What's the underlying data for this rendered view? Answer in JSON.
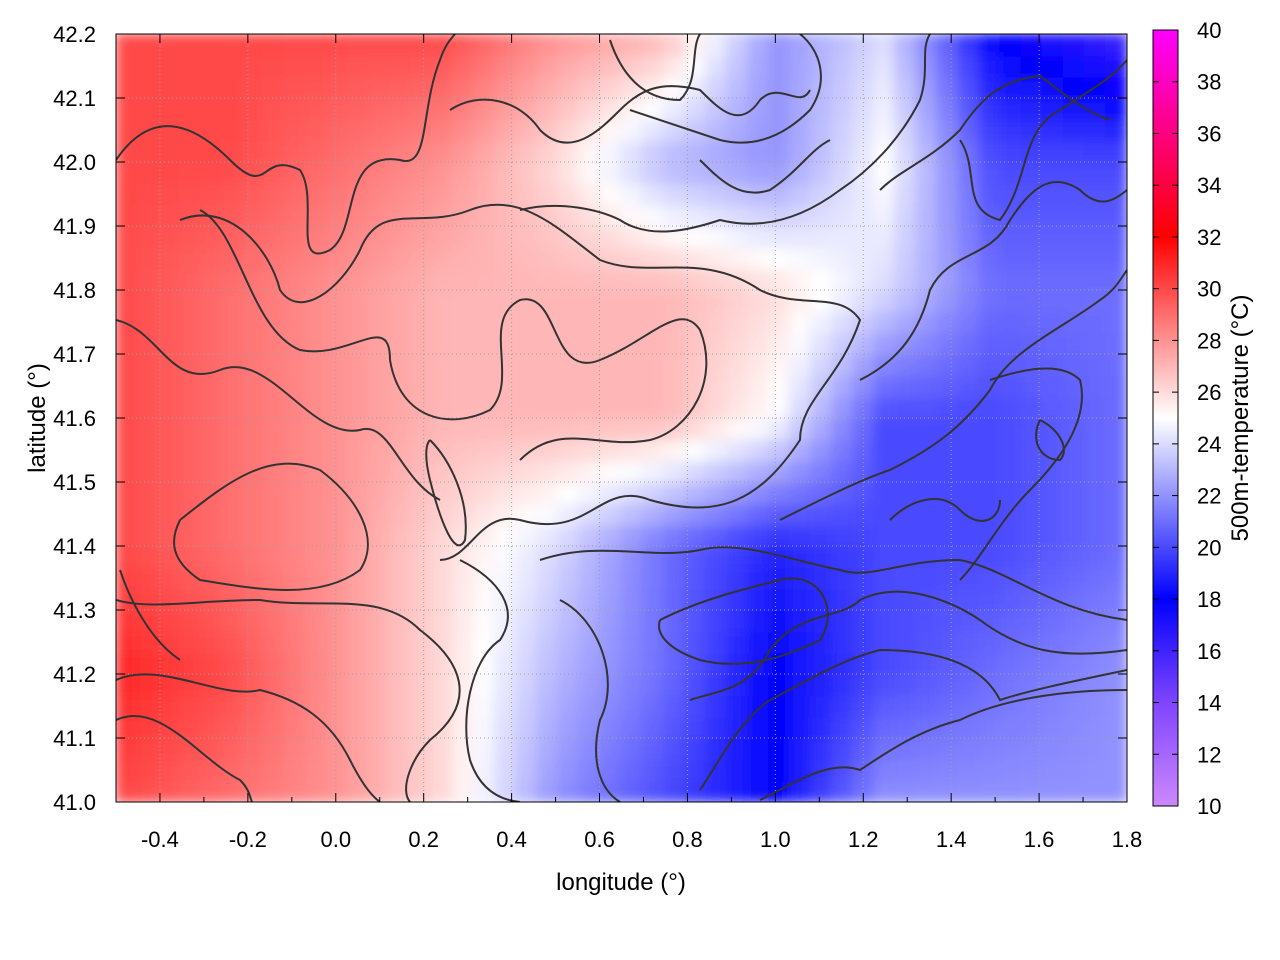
{
  "chart_data": {
    "type": "heatmap",
    "title": "",
    "xlabel": "longitude (°)",
    "ylabel": "latitude (°)",
    "colorbar_label": "500m-temperature (°C)",
    "xlim": [
      -0.5,
      1.8
    ],
    "ylim": [
      41.0,
      42.2
    ],
    "x_ticks": [
      "-0.4",
      "-0.2",
      "0.0",
      "0.2",
      "0.4",
      "0.6",
      "0.8",
      "1.0",
      "1.2",
      "1.4",
      "1.6",
      "1.8"
    ],
    "y_ticks": [
      "41.0",
      "41.1",
      "41.2",
      "41.3",
      "41.4",
      "41.5",
      "41.6",
      "41.7",
      "41.8",
      "41.9",
      "42.0",
      "42.1",
      "42.2"
    ],
    "colorbar_range": [
      10,
      40
    ],
    "colorbar_ticks": [
      "10",
      "12",
      "14",
      "16",
      "18",
      "20",
      "22",
      "24",
      "26",
      "28",
      "30",
      "32",
      "34",
      "36",
      "38",
      "40"
    ],
    "colormap": [
      {
        "value": 10,
        "color": "#cc88ff"
      },
      {
        "value": 14,
        "color": "#7f44ff"
      },
      {
        "value": 18,
        "color": "#0000ff"
      },
      {
        "value": 25,
        "color": "#ffffff"
      },
      {
        "value": 32,
        "color": "#ff0000"
      },
      {
        "value": 40,
        "color": "#ff00ff"
      }
    ],
    "grid": true,
    "contours": true,
    "temperature_field": {
      "x": [
        -0.5,
        -0.25,
        0.0,
        0.25,
        0.5,
        0.75,
        1.0,
        1.25,
        1.5,
        1.8
      ],
      "y": [
        41.0,
        41.2,
        41.4,
        41.6,
        41.8,
        42.0,
        42.2
      ],
      "values": [
        [
          30,
          29,
          28,
          26,
          22,
          20,
          18,
          22,
          22,
          22
        ],
        [
          31,
          30,
          28,
          26,
          23,
          21,
          18,
          20,
          21,
          22
        ],
        [
          30,
          29,
          28,
          26,
          24,
          21,
          19,
          20,
          20,
          21
        ],
        [
          30,
          29,
          28,
          27,
          27,
          27,
          25,
          20,
          20,
          21
        ],
        [
          30,
          29,
          28,
          27,
          27,
          27,
          26,
          24,
          21,
          21
        ],
        [
          30,
          30,
          29,
          28,
          26,
          23,
          22,
          25,
          20,
          20
        ],
        [
          30,
          30,
          30,
          30,
          28,
          27,
          22,
          24,
          18,
          16
        ]
      ]
    }
  }
}
